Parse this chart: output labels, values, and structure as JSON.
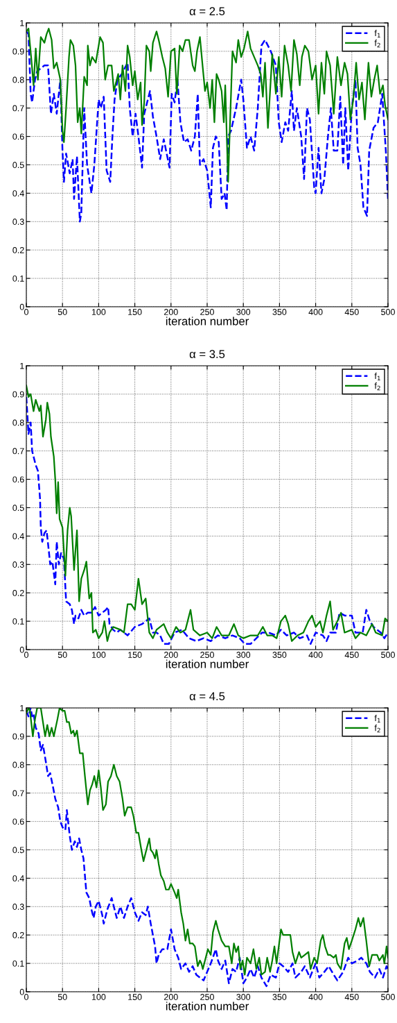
{
  "chart_data": [
    {
      "type": "line",
      "title": "α = 2.5",
      "xlabel": "iteration number",
      "xlim": [
        0,
        500
      ],
      "xticks": [
        0,
        50,
        100,
        150,
        200,
        250,
        300,
        350,
        400,
        450,
        500
      ],
      "ylim": [
        0,
        1
      ],
      "yticks": [
        0,
        0.1,
        0.2,
        0.3,
        0.4,
        0.5,
        0.6,
        0.7,
        0.8,
        0.9,
        1
      ],
      "grid": true,
      "legend": "top right",
      "series": [
        {
          "name": "f$_{1}$",
          "color": "#0000ff",
          "line_style": "dashed",
          "x": [
            0,
            3,
            6,
            8,
            12,
            15,
            25,
            30,
            34,
            38,
            42,
            47,
            50,
            52,
            55,
            60,
            64,
            66,
            70,
            74,
            76,
            80,
            84,
            90,
            94,
            100,
            103,
            107,
            111,
            116,
            119,
            122,
            126,
            132,
            140,
            143,
            147,
            151,
            155,
            160,
            163,
            167,
            171,
            175,
            180,
            185,
            190,
            198,
            201,
            205,
            209,
            213,
            218,
            223,
            228,
            233,
            237,
            240,
            245,
            250,
            255,
            258,
            262,
            266,
            270,
            274,
            277,
            279,
            283,
            290,
            297,
            300,
            305,
            310,
            315,
            320,
            325,
            330,
            338,
            345,
            349,
            353,
            358,
            362,
            367,
            370,
            374,
            380,
            384,
            388,
            392,
            398,
            400,
            404,
            408,
            412,
            417,
            421,
            425,
            430,
            434,
            438,
            441,
            445,
            450,
            455,
            458,
            462,
            466,
            471,
            474,
            480,
            486,
            492,
            497,
            500
          ],
          "values": [
            0.97,
            0.96,
            0.75,
            0.72,
            0.8,
            0.83,
            0.85,
            0.85,
            0.68,
            0.75,
            0.68,
            0.8,
            0.55,
            0.44,
            0.54,
            0.47,
            0.52,
            0.38,
            0.53,
            0.3,
            0.33,
            0.7,
            0.5,
            0.4,
            0.5,
            0.73,
            0.7,
            0.74,
            0.48,
            0.44,
            0.6,
            0.73,
            0.8,
            0.82,
            0.86,
            0.7,
            0.6,
            0.68,
            0.6,
            0.49,
            0.68,
            0.72,
            0.76,
            0.67,
            0.6,
            0.52,
            0.59,
            0.49,
            0.75,
            0.72,
            0.8,
            0.65,
            0.58,
            0.59,
            0.55,
            0.6,
            0.75,
            0.5,
            0.52,
            0.48,
            0.35,
            0.56,
            0.6,
            0.58,
            0.38,
            0.4,
            0.34,
            0.6,
            0.62,
            0.7,
            0.8,
            0.73,
            0.56,
            0.6,
            0.55,
            0.7,
            0.92,
            0.94,
            0.9,
            0.85,
            0.65,
            0.58,
            0.65,
            0.62,
            0.76,
            0.62,
            0.7,
            0.6,
            0.45,
            0.7,
            0.66,
            0.42,
            0.4,
            0.56,
            0.4,
            0.45,
            0.6,
            0.7,
            0.55,
            0.55,
            0.74,
            0.5,
            0.7,
            0.48,
            0.7,
            0.8,
            0.56,
            0.5,
            0.35,
            0.32,
            0.55,
            0.63,
            0.65,
            0.75,
            0.55,
            0.38
          ]
        },
        {
          "name": "f$_{2}$",
          "color": "#007f00",
          "line_style": "solid",
          "x": [
            0,
            3,
            7,
            10,
            13,
            16,
            20,
            25,
            28,
            31,
            35,
            38,
            42,
            47,
            50,
            52,
            55,
            59,
            61,
            65,
            68,
            71,
            74,
            76,
            80,
            84,
            85,
            88,
            91,
            96,
            102,
            106,
            109,
            113,
            118,
            121,
            127,
            130,
            133,
            137,
            140,
            143,
            147,
            150,
            154,
            158,
            160,
            163,
            166,
            170,
            172,
            175,
            180,
            183,
            188,
            192,
            196,
            200,
            205,
            208,
            212,
            216,
            220,
            225,
            230,
            233,
            236,
            240,
            244,
            247,
            250,
            254,
            257,
            260,
            263,
            266,
            270,
            273,
            275,
            279,
            281,
            285,
            290,
            293,
            297,
            301,
            306,
            310,
            315,
            320,
            324,
            327,
            330,
            334,
            340,
            345,
            349,
            353,
            357,
            362,
            366,
            370,
            374,
            378,
            381,
            385,
            390,
            395,
            400,
            404,
            408,
            412,
            415,
            420,
            425,
            430,
            435,
            440,
            444,
            448,
            452,
            456,
            460,
            464,
            468,
            473,
            477,
            481,
            485,
            489,
            493,
            496,
            500
          ],
          "values": [
            0.97,
            0.98,
            0.87,
            0.78,
            0.91,
            0.8,
            0.95,
            0.93,
            0.96,
            0.98,
            0.94,
            0.84,
            0.86,
            0.8,
            0.62,
            0.58,
            0.7,
            0.88,
            0.94,
            0.92,
            0.85,
            0.65,
            0.7,
            0.61,
            0.81,
            0.78,
            0.92,
            0.85,
            0.88,
            0.86,
            0.95,
            0.93,
            0.8,
            0.85,
            0.85,
            0.76,
            0.82,
            0.73,
            0.85,
            0.76,
            0.92,
            0.88,
            0.78,
            0.83,
            0.73,
            0.79,
            0.64,
            0.72,
            0.92,
            0.9,
            0.83,
            0.93,
            0.97,
            0.94,
            0.88,
            0.84,
            0.74,
            0.9,
            0.91,
            0.75,
            0.92,
            0.9,
            0.94,
            0.94,
            0.85,
            0.83,
            0.9,
            0.95,
            0.84,
            0.76,
            0.79,
            0.7,
            0.8,
            0.65,
            0.82,
            0.8,
            0.76,
            0.65,
            0.78,
            0.44,
            0.6,
            0.9,
            0.86,
            0.94,
            0.88,
            0.91,
            0.97,
            0.91,
            0.88,
            0.85,
            0.82,
            0.74,
            0.86,
            0.63,
            0.89,
            0.75,
            0.88,
            0.74,
            0.92,
            0.85,
            0.76,
            0.94,
            0.89,
            0.78,
            0.88,
            0.92,
            0.9,
            0.8,
            0.85,
            0.68,
            0.86,
            0.75,
            0.9,
            0.85,
            0.68,
            0.88,
            0.78,
            0.86,
            0.82,
            0.66,
            0.73,
            0.86,
            0.73,
            0.79,
            0.66,
            0.86,
            0.74,
            0.8,
            0.85,
            0.75,
            0.78,
            0.71,
            0.66
          ]
        }
      ]
    },
    {
      "type": "line",
      "title": "α = 3.5",
      "xlabel": "iteration number",
      "xlim": [
        0,
        500
      ],
      "xticks": [
        0,
        50,
        100,
        150,
        200,
        250,
        300,
        350,
        400,
        450,
        500
      ],
      "ylim": [
        0,
        1
      ],
      "yticks": [
        0,
        0.1,
        0.2,
        0.3,
        0.4,
        0.5,
        0.6,
        0.7,
        0.8,
        0.9,
        1
      ],
      "grid": true,
      "legend": "top right",
      "series": [
        {
          "name": "f$_{1}$",
          "color": "#0000ff",
          "line_style": "dashed",
          "x": [
            0,
            3,
            6,
            8,
            11,
            13,
            16,
            19,
            20,
            22,
            25,
            28,
            31,
            33,
            36,
            40,
            42,
            45,
            48,
            52,
            55,
            60,
            63,
            66,
            68,
            72,
            76,
            80,
            85,
            90,
            95,
            100,
            105,
            110,
            113,
            115,
            120,
            125,
            130,
            140,
            150,
            160,
            170,
            175,
            180,
            185,
            190,
            197,
            205,
            215,
            225,
            235,
            245,
            255,
            265,
            275,
            285,
            295,
            302,
            310,
            318,
            326,
            335,
            345,
            352,
            360,
            370,
            378,
            388,
            393,
            400,
            410,
            415,
            420,
            428,
            433,
            440,
            450,
            455,
            465,
            470,
            475,
            480,
            490,
            495,
            500
          ],
          "values": [
            0.89,
            0.76,
            0.8,
            0.7,
            0.67,
            0.65,
            0.63,
            0.53,
            0.43,
            0.38,
            0.41,
            0.42,
            0.35,
            0.3,
            0.31,
            0.23,
            0.38,
            0.3,
            0.34,
            0.32,
            0.17,
            0.16,
            0.14,
            0.09,
            0.12,
            0.11,
            0.14,
            0.12,
            0.13,
            0.13,
            0.15,
            0.12,
            0.13,
            0.14,
            0.15,
            0.09,
            0.07,
            0.06,
            0.07,
            0.05,
            0.08,
            0.09,
            0.11,
            0.06,
            0.06,
            0.05,
            0.02,
            0.02,
            0.06,
            0.07,
            0.04,
            0.03,
            0.04,
            0.03,
            0.05,
            0.04,
            0.05,
            0.04,
            0.02,
            0.02,
            0.04,
            0.06,
            0.06,
            0.05,
            0.07,
            0.05,
            0.06,
            0.04,
            0.05,
            0.02,
            0.06,
            0.05,
            0.03,
            0.06,
            0.06,
            0.13,
            0.12,
            0.12,
            0.06,
            0.06,
            0.14,
            0.1,
            0.08,
            0.06,
            0.04,
            0.06
          ]
        },
        {
          "name": "f$_{2}$",
          "color": "#007f00",
          "line_style": "solid",
          "x": [
            0,
            3,
            6,
            10,
            13,
            18,
            20,
            23,
            27,
            29,
            32,
            34,
            38,
            40,
            42,
            44,
            46,
            50,
            54,
            57,
            60,
            62,
            66,
            70,
            73,
            76,
            80,
            83,
            87,
            90,
            92,
            96,
            100,
            105,
            108,
            112,
            115,
            120,
            130,
            135,
            140,
            145,
            150,
            155,
            160,
            165,
            170,
            175,
            180,
            190,
            195,
            200,
            207,
            213,
            220,
            227,
            231,
            240,
            250,
            257,
            263,
            270,
            280,
            287,
            293,
            300,
            310,
            320,
            327,
            333,
            340,
            346,
            352,
            358,
            362,
            367,
            375,
            383,
            390,
            395,
            400,
            406,
            410,
            415,
            420,
            424,
            430,
            435,
            440,
            450,
            455,
            462,
            470,
            478,
            483,
            492,
            496,
            500
          ],
          "values": [
            0.93,
            0.89,
            0.9,
            0.84,
            0.88,
            0.84,
            0.86,
            0.75,
            0.81,
            0.87,
            0.83,
            0.75,
            0.68,
            0.6,
            0.48,
            0.59,
            0.46,
            0.43,
            0.26,
            0.42,
            0.5,
            0.47,
            0.28,
            0.42,
            0.17,
            0.25,
            0.28,
            0.31,
            0.18,
            0.2,
            0.06,
            0.07,
            0.04,
            0.06,
            0.1,
            0.03,
            0.06,
            0.08,
            0.07,
            0.06,
            0.16,
            0.16,
            0.14,
            0.25,
            0.16,
            0.18,
            0.06,
            0.04,
            0.07,
            0.09,
            0.06,
            0.04,
            0.08,
            0.06,
            0.07,
            0.14,
            0.07,
            0.05,
            0.06,
            0.04,
            0.08,
            0.05,
            0.05,
            0.09,
            0.05,
            0.04,
            0.05,
            0.05,
            0.08,
            0.05,
            0.05,
            0.04,
            0.1,
            0.12,
            0.09,
            0.03,
            0.05,
            0.06,
            0.1,
            0.12,
            0.08,
            0.1,
            0.06,
            0.12,
            0.17,
            0.07,
            0.1,
            0.13,
            0.06,
            0.07,
            0.04,
            0.06,
            0.05,
            0.09,
            0.06,
            0.05,
            0.11,
            0.1
          ]
        }
      ]
    },
    {
      "type": "line",
      "title": "α = 4.5",
      "xlabel": "iteration number",
      "xlim": [
        0,
        500
      ],
      "xticks": [
        0,
        50,
        100,
        150,
        200,
        250,
        300,
        350,
        400,
        450,
        500
      ],
      "ylim": [
        0,
        1
      ],
      "yticks": [
        0,
        0.1,
        0.2,
        0.3,
        0.4,
        0.5,
        0.6,
        0.7,
        0.8,
        0.9,
        1
      ],
      "grid": true,
      "legend": "top right",
      "series": [
        {
          "name": "f$_{1}$",
          "color": "#0000ff",
          "line_style": "dashed",
          "x": [
            0,
            3,
            6,
            8,
            10,
            13,
            17,
            20,
            23,
            27,
            30,
            33,
            37,
            40,
            44,
            47,
            50,
            54,
            56,
            60,
            63,
            67,
            70,
            73,
            76,
            79,
            83,
            87,
            90,
            93,
            96,
            100,
            105,
            107,
            112,
            118,
            122,
            125,
            130,
            135,
            140,
            145,
            150,
            155,
            160,
            165,
            168,
            172,
            178,
            180,
            183,
            188,
            195,
            200,
            205,
            210,
            214,
            220,
            225,
            230,
            235,
            240,
            245,
            250,
            255,
            262,
            265,
            270,
            275,
            280,
            285,
            290,
            295,
            300,
            305,
            310,
            315,
            320,
            325,
            332,
            338,
            345,
            350,
            355,
            362,
            368,
            372,
            380,
            385,
            392,
            400,
            405,
            412,
            418,
            425,
            430,
            438,
            445,
            450,
            458,
            463,
            470,
            475,
            482,
            488,
            493,
            498,
            500
          ],
          "values": [
            0.99,
            0.97,
            1.0,
            0.97,
            0.98,
            0.93,
            0.91,
            0.85,
            0.87,
            0.81,
            0.76,
            0.77,
            0.72,
            0.68,
            0.65,
            0.6,
            0.58,
            0.57,
            0.64,
            0.55,
            0.5,
            0.53,
            0.51,
            0.54,
            0.5,
            0.47,
            0.35,
            0.33,
            0.29,
            0.26,
            0.3,
            0.32,
            0.27,
            0.24,
            0.29,
            0.33,
            0.29,
            0.26,
            0.3,
            0.26,
            0.3,
            0.33,
            0.28,
            0.25,
            0.28,
            0.27,
            0.3,
            0.24,
            0.16,
            0.1,
            0.13,
            0.15,
            0.15,
            0.22,
            0.15,
            0.12,
            0.08,
            0.1,
            0.07,
            0.09,
            0.06,
            0.05,
            0.04,
            0.07,
            0.1,
            0.15,
            0.11,
            0.08,
            0.11,
            0.03,
            0.08,
            0.07,
            0.12,
            0.03,
            0.05,
            0.08,
            0.05,
            0.09,
            0.05,
            0.02,
            0.06,
            0.05,
            0.1,
            0.09,
            0.07,
            0.1,
            0.05,
            0.07,
            0.09,
            0.05,
            0.1,
            0.05,
            0.07,
            0.09,
            0.06,
            0.04,
            0.07,
            0.12,
            0.1,
            0.11,
            0.12,
            0.1,
            0.07,
            0.05,
            0.08,
            0.05,
            0.09,
            0.08
          ]
        },
        {
          "name": "f$_{2}$",
          "color": "#007f00",
          "line_style": "solid",
          "x": [
            0,
            3,
            5,
            9,
            12,
            15,
            20,
            26,
            29,
            32,
            35,
            38,
            43,
            46,
            50,
            53,
            56,
            59,
            62,
            65,
            67,
            70,
            72,
            74,
            78,
            81,
            85,
            88,
            91,
            94,
            97,
            100,
            103,
            106,
            110,
            113,
            117,
            121,
            125,
            129,
            133,
            136,
            140,
            145,
            148,
            152,
            155,
            159,
            162,
            165,
            170,
            172,
            175,
            178,
            180,
            183,
            186,
            190,
            193,
            197,
            200,
            205,
            208,
            210,
            214,
            217,
            220,
            223,
            226,
            230,
            233,
            237,
            240,
            242,
            244,
            248,
            251,
            255,
            258,
            262,
            265,
            270,
            275,
            280,
            284,
            287,
            290,
            293,
            296,
            299,
            302,
            305,
            310,
            314,
            318,
            322,
            325,
            330,
            333,
            337,
            340,
            343,
            346,
            352,
            355,
            365,
            368,
            372,
            377,
            380,
            385,
            390,
            393,
            398,
            402,
            407,
            410,
            413,
            417,
            420,
            425,
            428,
            430,
            435,
            440,
            443,
            446,
            450,
            455,
            459,
            462,
            466,
            470,
            474,
            478,
            485,
            488,
            493,
            495,
            498,
            500
          ],
          "values": [
            0.98,
            1.0,
            0.99,
            0.9,
            0.96,
            1.0,
            1.0,
            0.9,
            0.94,
            0.9,
            0.93,
            0.9,
            0.96,
            1.0,
            0.99,
            0.99,
            0.95,
            0.95,
            0.91,
            0.92,
            0.9,
            0.92,
            0.88,
            0.84,
            0.84,
            0.76,
            0.66,
            0.71,
            0.73,
            0.76,
            0.72,
            0.78,
            0.72,
            0.64,
            0.66,
            0.74,
            0.76,
            0.8,
            0.76,
            0.74,
            0.68,
            0.62,
            0.65,
            0.65,
            0.62,
            0.56,
            0.56,
            0.5,
            0.46,
            0.49,
            0.54,
            0.5,
            0.49,
            0.47,
            0.5,
            0.45,
            0.41,
            0.39,
            0.36,
            0.36,
            0.38,
            0.35,
            0.33,
            0.36,
            0.28,
            0.24,
            0.18,
            0.22,
            0.17,
            0.17,
            0.16,
            0.09,
            0.11,
            0.1,
            0.08,
            0.12,
            0.15,
            0.13,
            0.21,
            0.25,
            0.22,
            0.18,
            0.16,
            0.16,
            0.1,
            0.17,
            0.14,
            0.16,
            0.08,
            0.11,
            0.06,
            0.12,
            0.1,
            0.15,
            0.08,
            0.12,
            0.06,
            0.07,
            0.12,
            0.07,
            0.11,
            0.16,
            0.1,
            0.22,
            0.2,
            0.2,
            0.14,
            0.1,
            0.14,
            0.12,
            0.13,
            0.14,
            0.08,
            0.12,
            0.1,
            0.18,
            0.2,
            0.16,
            0.13,
            0.13,
            0.12,
            0.13,
            0.1,
            0.08,
            0.17,
            0.19,
            0.15,
            0.18,
            0.22,
            0.26,
            0.23,
            0.26,
            0.18,
            0.09,
            0.13,
            0.13,
            0.11,
            0.13,
            0.1,
            0.16,
            0.12
          ]
        }
      ]
    }
  ]
}
